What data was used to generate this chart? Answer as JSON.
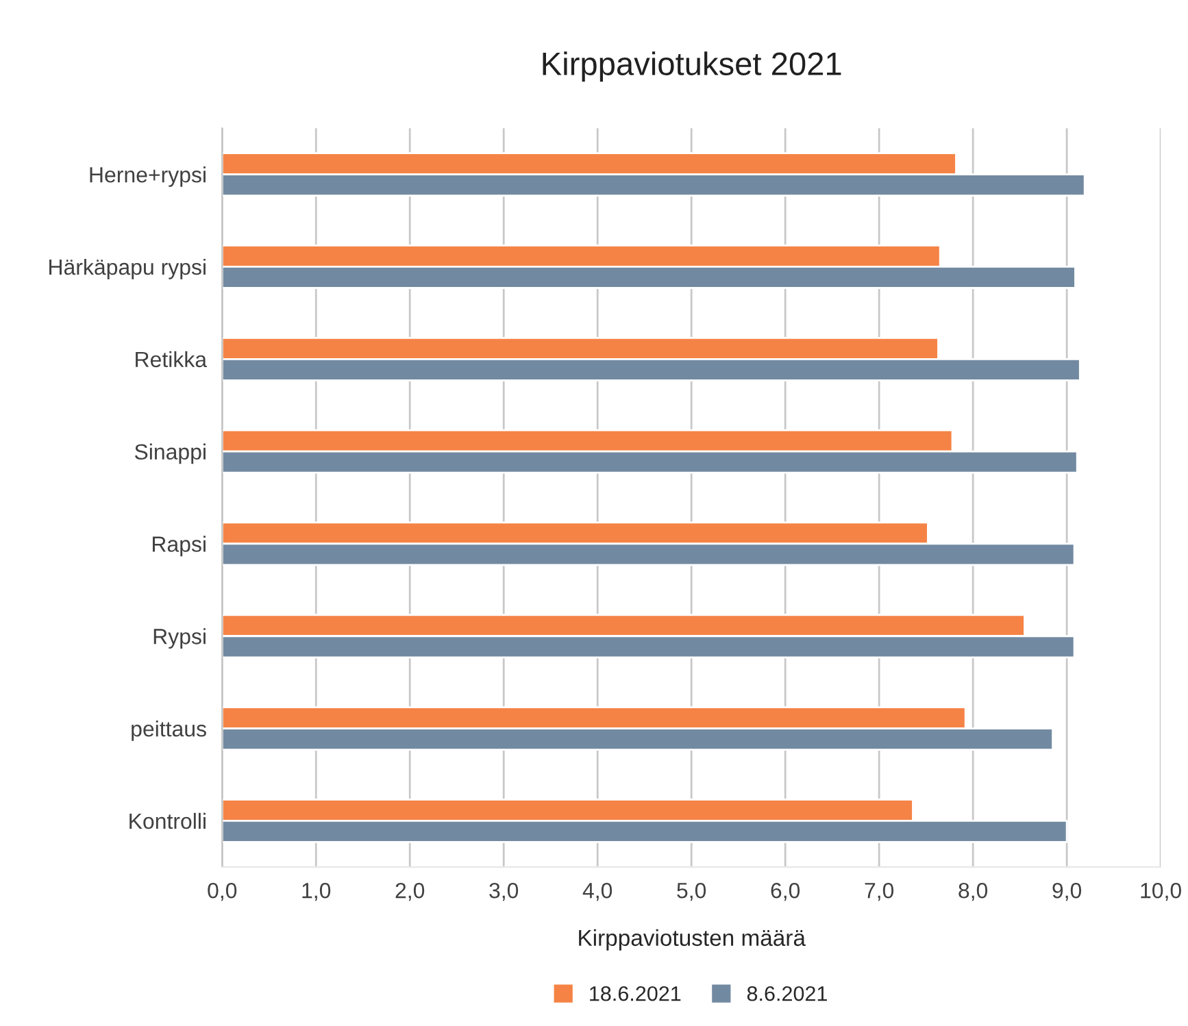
{
  "chart_data": {
    "type": "bar",
    "orientation": "horizontal",
    "title": "Kirppaviotukset 2021",
    "xlabel": "Kirppaviotusten määrä",
    "categories": [
      "Herne+rypsi",
      "Härkäpapu rypsi",
      "Retikka",
      "Sinappi",
      "Rapsi",
      "Rypsi",
      "peittaus",
      "Kontrolli"
    ],
    "series": [
      {
        "name": "18.6.2021",
        "color": "#f58345",
        "values": [
          7.82,
          7.65,
          7.63,
          7.78,
          7.52,
          8.55,
          7.92,
          7.36
        ]
      },
      {
        "name": "8.6.2021",
        "color": "#728aa1",
        "values": [
          9.19,
          9.09,
          9.14,
          9.11,
          9.08,
          9.08,
          8.85,
          9.0
        ]
      }
    ],
    "xlim": [
      0,
      10
    ],
    "xticks": [
      {
        "value": 0,
        "label": "0,0"
      },
      {
        "value": 1,
        "label": "1,0"
      },
      {
        "value": 2,
        "label": "2,0"
      },
      {
        "value": 3,
        "label": "3,0"
      },
      {
        "value": 4,
        "label": "4,0"
      },
      {
        "value": 5,
        "label": "5,0"
      },
      {
        "value": 6,
        "label": "6,0"
      },
      {
        "value": 7,
        "label": "7,0"
      },
      {
        "value": 8,
        "label": "8,0"
      },
      {
        "value": 9,
        "label": "9,0"
      },
      {
        "value": 10,
        "label": "10,0"
      }
    ],
    "grid": "x",
    "legend": "bottom"
  }
}
